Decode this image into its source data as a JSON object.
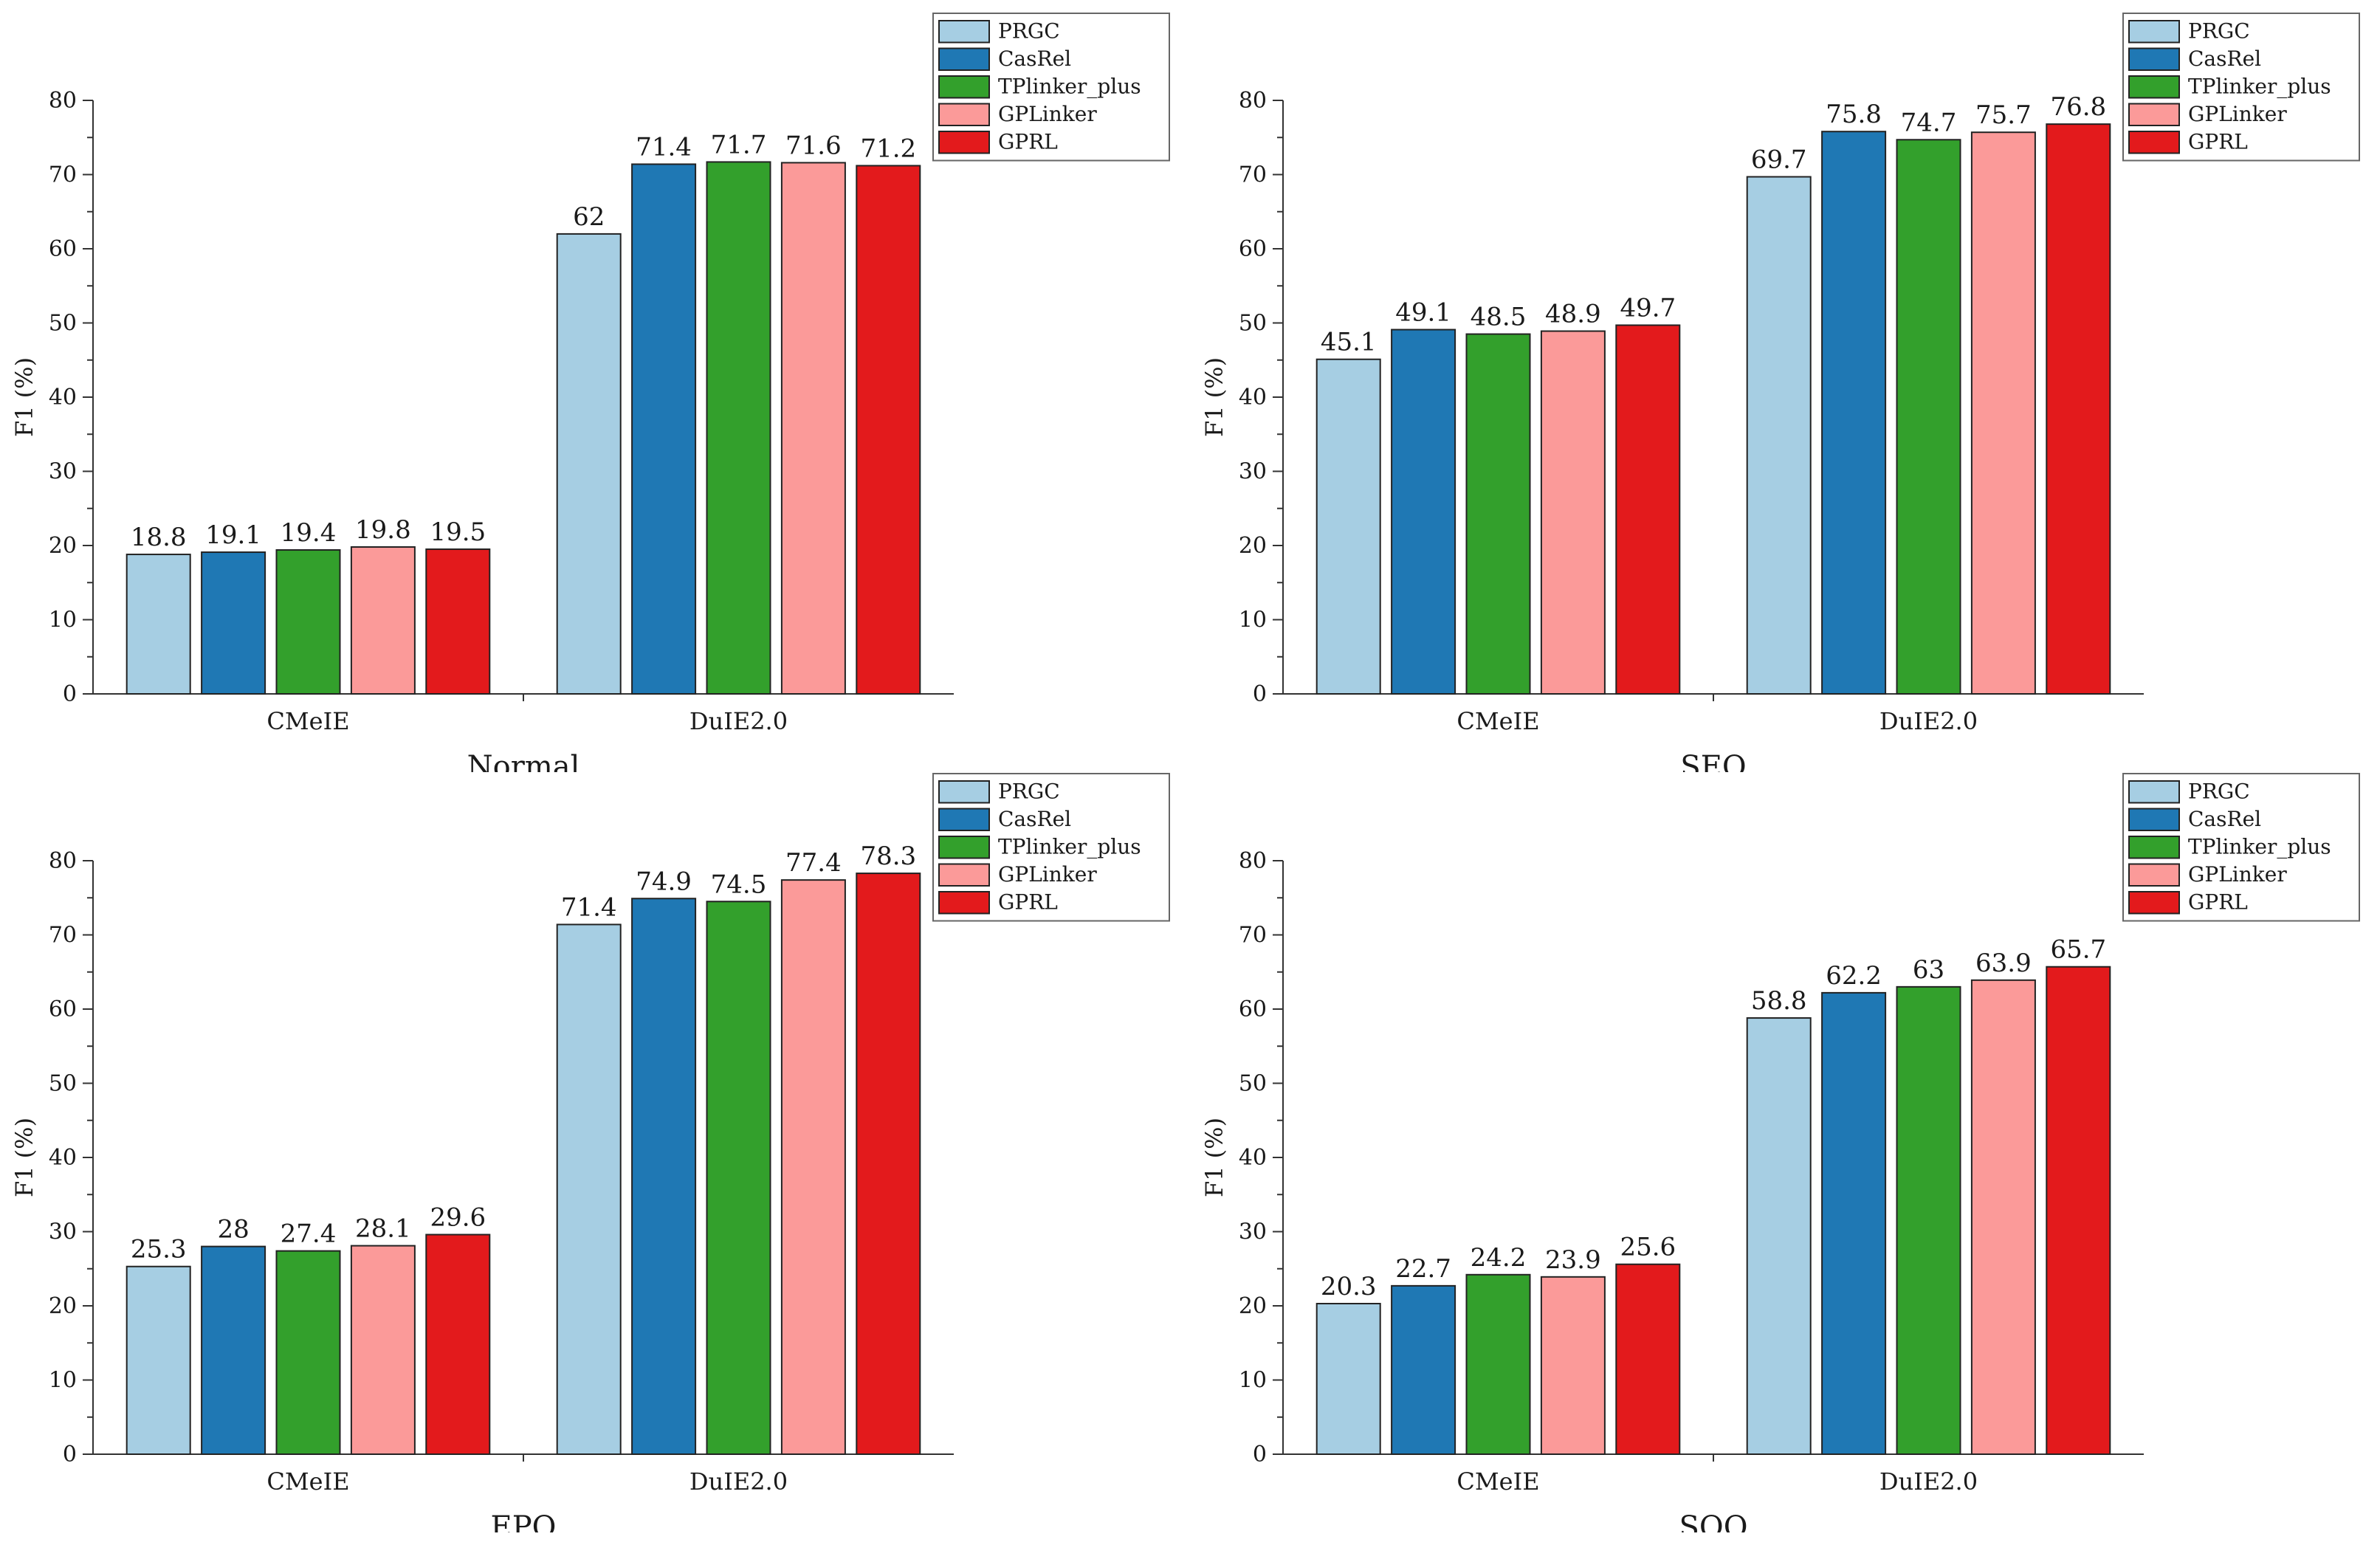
{
  "chart_data": [
    {
      "type": "bar",
      "title": "Normal",
      "xlabel": "",
      "ylabel": "F1 (%)",
      "ylim": [
        0,
        80
      ],
      "yticks": [
        0,
        10,
        20,
        30,
        40,
        50,
        60,
        70,
        80
      ],
      "categories": [
        "CMeIE",
        "DuIE2.0"
      ],
      "legend_position": "top-right",
      "series": [
        {
          "name": "PRGC",
          "color": "#a6cee3",
          "values": [
            18.8,
            62
          ],
          "labels": [
            "18.8",
            "62"
          ]
        },
        {
          "name": "CasRel",
          "color": "#1f78b4",
          "values": [
            19.1,
            71.4
          ],
          "labels": [
            "19.1",
            "71.4"
          ]
        },
        {
          "name": "TPlinker_plus",
          "color": "#33a02c",
          "values": [
            19.4,
            71.7
          ],
          "labels": [
            "19.4",
            "71.7"
          ]
        },
        {
          "name": "GPLinker",
          "color": "#fb9a99",
          "values": [
            19.8,
            71.6
          ],
          "labels": [
            "19.8",
            "71.6"
          ]
        },
        {
          "name": "GPRL",
          "color": "#e31a1c",
          "values": [
            19.5,
            71.2
          ],
          "labels": [
            "19.5",
            "71.2"
          ]
        }
      ]
    },
    {
      "type": "bar",
      "title": "SEO",
      "xlabel": "",
      "ylabel": "F1 (%)",
      "ylim": [
        0,
        80
      ],
      "yticks": [
        0,
        10,
        20,
        30,
        40,
        50,
        60,
        70,
        80
      ],
      "categories": [
        "CMeIE",
        "DuIE2.0"
      ],
      "legend_position": "top-right",
      "series": [
        {
          "name": "PRGC",
          "color": "#a6cee3",
          "values": [
            45.1,
            69.7
          ],
          "labels": [
            "45.1",
            "69.7"
          ]
        },
        {
          "name": "CasRel",
          "color": "#1f78b4",
          "values": [
            49.1,
            75.8
          ],
          "labels": [
            "49.1",
            "75.8"
          ]
        },
        {
          "name": "TPlinker_plus",
          "color": "#33a02c",
          "values": [
            48.5,
            74.7
          ],
          "labels": [
            "48.5",
            "74.7"
          ]
        },
        {
          "name": "GPLinker",
          "color": "#fb9a99",
          "values": [
            48.9,
            75.7
          ],
          "labels": [
            "48.9",
            "75.7"
          ]
        },
        {
          "name": "GPRL",
          "color": "#e31a1c",
          "values": [
            49.7,
            76.8
          ],
          "labels": [
            "49.7",
            "76.8"
          ]
        }
      ]
    },
    {
      "type": "bar",
      "title": "EPO",
      "xlabel": "",
      "ylabel": "F1 (%)",
      "ylim": [
        0,
        80
      ],
      "yticks": [
        0,
        10,
        20,
        30,
        40,
        50,
        60,
        70,
        80
      ],
      "categories": [
        "CMeIE",
        "DuIE2.0"
      ],
      "legend_position": "top-right",
      "series": [
        {
          "name": "PRGC",
          "color": "#a6cee3",
          "values": [
            25.3,
            71.4
          ],
          "labels": [
            "25.3",
            "71.4"
          ]
        },
        {
          "name": "CasRel",
          "color": "#1f78b4",
          "values": [
            28,
            74.9
          ],
          "labels": [
            "28",
            "74.9"
          ]
        },
        {
          "name": "TPlinker_plus",
          "color": "#33a02c",
          "values": [
            27.4,
            74.5
          ],
          "labels": [
            "27.4",
            "74.5"
          ]
        },
        {
          "name": "GPLinker",
          "color": "#fb9a99",
          "values": [
            28.1,
            77.4
          ],
          "labels": [
            "28.1",
            "77.4"
          ]
        },
        {
          "name": "GPRL",
          "color": "#e31a1c",
          "values": [
            29.6,
            78.3
          ],
          "labels": [
            "29.6",
            "78.3"
          ]
        }
      ]
    },
    {
      "type": "bar",
      "title": "SOO",
      "xlabel": "",
      "ylabel": "F1 (%)",
      "ylim": [
        0,
        80
      ],
      "yticks": [
        0,
        10,
        20,
        30,
        40,
        50,
        60,
        70,
        80
      ],
      "categories": [
        "CMeIE",
        "DuIE2.0"
      ],
      "legend_position": "top-right",
      "series": [
        {
          "name": "PRGC",
          "color": "#a6cee3",
          "values": [
            20.3,
            58.8
          ],
          "labels": [
            "20.3",
            "58.8"
          ]
        },
        {
          "name": "CasRel",
          "color": "#1f78b4",
          "values": [
            22.7,
            62.2
          ],
          "labels": [
            "22.7",
            "62.2"
          ]
        },
        {
          "name": "TPlinker_plus",
          "color": "#33a02c",
          "values": [
            24.2,
            63
          ],
          "labels": [
            "24.2",
            "63"
          ]
        },
        {
          "name": "GPLinker",
          "color": "#fb9a99",
          "values": [
            23.9,
            63.9
          ],
          "labels": [
            "23.9",
            "63.9"
          ]
        },
        {
          "name": "GPRL",
          "color": "#e31a1c",
          "values": [
            25.6,
            65.7
          ],
          "labels": [
            "25.6",
            "65.7"
          ]
        }
      ]
    }
  ]
}
